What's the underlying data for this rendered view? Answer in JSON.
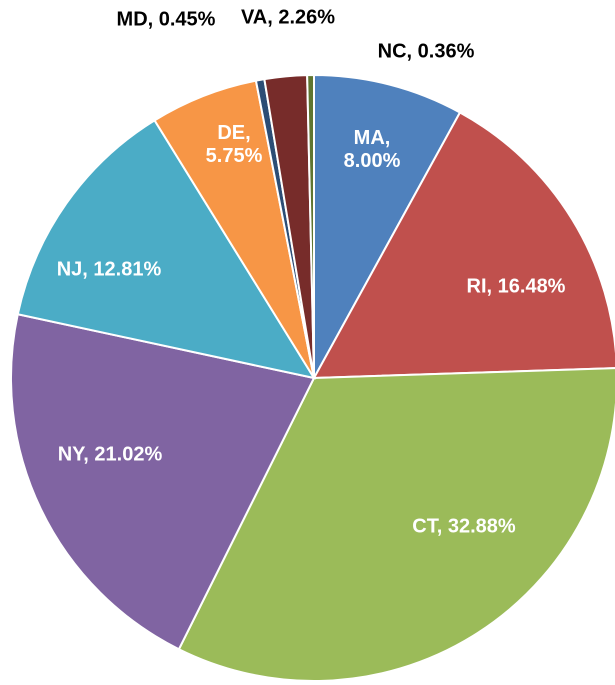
{
  "chart_data": {
    "type": "pie",
    "categories": [
      "MA",
      "RI",
      "CT",
      "NY",
      "NJ",
      "DE",
      "MD",
      "VA",
      "NC"
    ],
    "values": [
      8.0,
      16.48,
      32.88,
      21.02,
      12.81,
      5.75,
      0.45,
      2.26,
      0.36
    ],
    "value_labels": [
      "MA, 8.00%",
      "RI, 16.48%",
      "CT, 32.88%",
      "NY, 21.02%",
      "NJ, 12.81%",
      "DE, 5.75%",
      "MD, 0.45%",
      "VA, 2.26%",
      "NC, 0.36%"
    ],
    "colors": [
      "#4f81bd",
      "#c0504d",
      "#9bbb59",
      "#8064a2",
      "#4bacc6",
      "#f79646",
      "#2c4d75",
      "#772c2a",
      "#5f7530"
    ]
  }
}
